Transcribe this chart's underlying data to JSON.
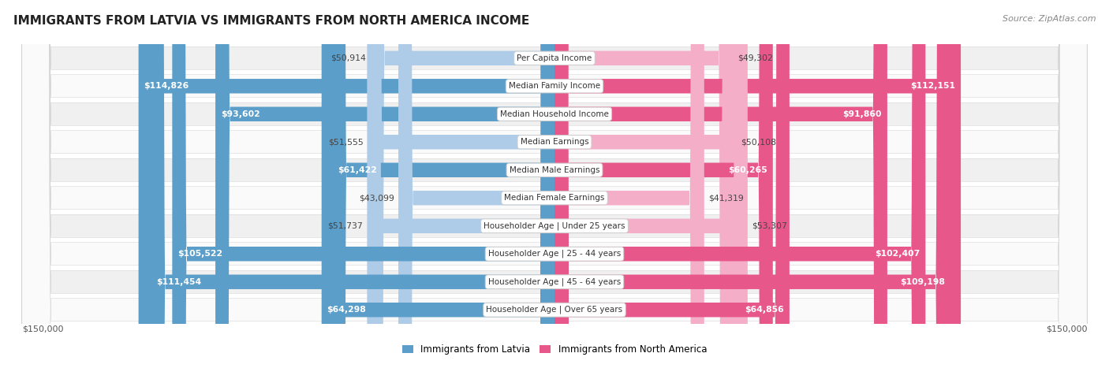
{
  "title": "IMMIGRANTS FROM LATVIA VS IMMIGRANTS FROM NORTH AMERICA INCOME",
  "source": "Source: ZipAtlas.com",
  "categories": [
    "Per Capita Income",
    "Median Family Income",
    "Median Household Income",
    "Median Earnings",
    "Median Male Earnings",
    "Median Female Earnings",
    "Householder Age | Under 25 years",
    "Householder Age | 25 - 44 years",
    "Householder Age | 45 - 64 years",
    "Householder Age | Over 65 years"
  ],
  "latvia_values": [
    50914,
    114826,
    93602,
    51555,
    61422,
    43099,
    51737,
    105522,
    111454,
    64298
  ],
  "north_america_values": [
    49302,
    112151,
    91860,
    50108,
    60265,
    41319,
    53307,
    102407,
    109198,
    64856
  ],
  "latvia_labels": [
    "$50,914",
    "$114,826",
    "$93,602",
    "$51,555",
    "$61,422",
    "$43,099",
    "$51,737",
    "$105,522",
    "$111,454",
    "$64,298"
  ],
  "north_america_labels": [
    "$49,302",
    "$112,151",
    "$91,860",
    "$50,108",
    "$60,265",
    "$41,319",
    "$53,307",
    "$102,407",
    "$109,198",
    "$64,856"
  ],
  "latvia_color_light": "#aecce8",
  "latvia_color_dark": "#5b9ec9",
  "north_america_color_light": "#f5aec8",
  "north_america_color_dark": "#e8578a",
  "max_value": 150000,
  "bg_color": "#ffffff",
  "row_bg_odd": "#f0f0f0",
  "row_bg_even": "#fafafa",
  "legend_latvia": "Immigrants from Latvia",
  "legend_north_america": "Immigrants from North America",
  "xlabel_left": "$150,000",
  "xlabel_right": "$150,000",
  "large_threshold": 60000
}
